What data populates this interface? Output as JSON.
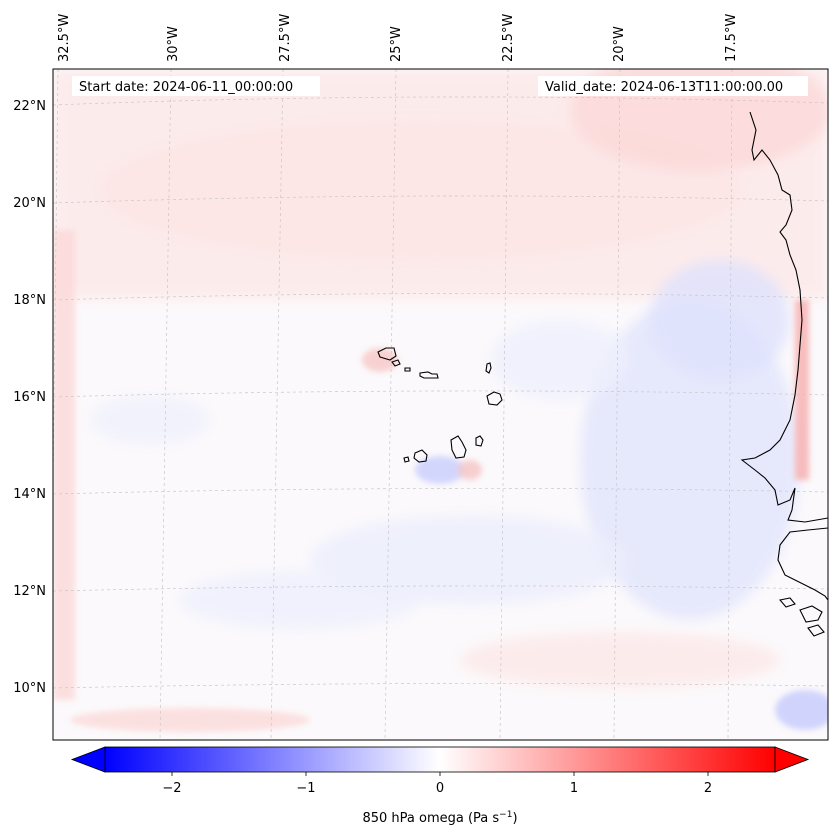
{
  "map": {
    "start_date_label": "Start date: 2024-06-11_00:00:00",
    "valid_date_label": "Valid_date: 2024-06-13T11:00:00.00",
    "lon_labels": [
      "32.5°W",
      "30°W",
      "27.5°W",
      "25°W",
      "22.5°W",
      "20°W",
      "17.5°W"
    ],
    "lat_labels": [
      "22°N",
      "20°N",
      "18°N",
      "16°N",
      "14°N",
      "12°N",
      "10°N"
    ],
    "region": "Cape Verde Islands and West African coast (Senegal / Mauritania)",
    "field": "850 hPa omega"
  },
  "colorbar": {
    "label_main": "850 hPa omega (Pa s",
    "label_sup": "−1",
    "label_close": ")",
    "ticks": [
      "−2",
      "−1",
      "0",
      "1",
      "2"
    ],
    "range": [
      -2.5,
      2.5
    ],
    "colormap": "bwr",
    "extend": "both",
    "colors": {
      "negative": "#0000ff",
      "zero": "#ffffff",
      "positive": "#ff0000"
    }
  }
}
